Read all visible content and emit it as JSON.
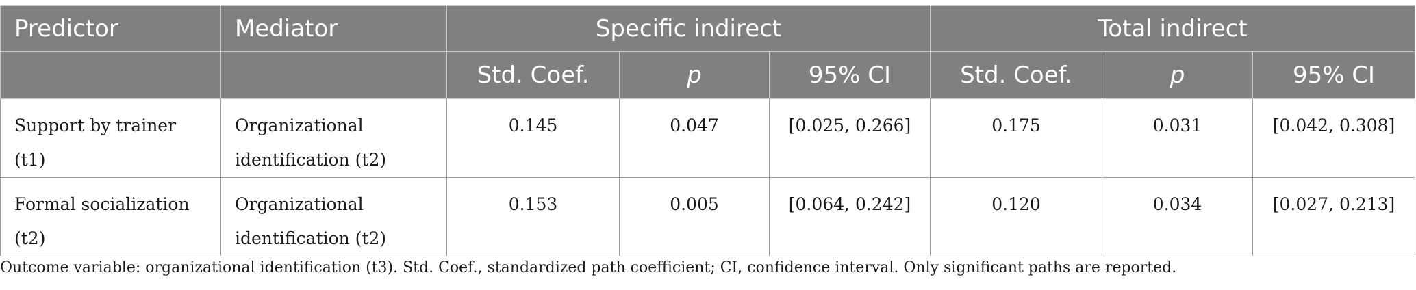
{
  "table": {
    "header_row1": {
      "predictor": "Predictor",
      "mediator": "Mediator",
      "specific_indirect": "Specific indirect",
      "total_indirect": "Total indirect"
    },
    "header_row2": {
      "std_coef_specific": "Std. Coef.",
      "p_specific": "p",
      "ci_specific": "95% CI",
      "std_coef_total": "Std. Coef.",
      "p_total": "p",
      "ci_total": "95% CI"
    },
    "rows": [
      {
        "predictor": "Support by trainer (t1)",
        "mediator": "Organizational identification (t2)",
        "spec_coef": "0.145",
        "spec_p": "0.047",
        "spec_ci": "[0.025, 0.266]",
        "tot_coef": "0.175",
        "tot_p": "0.031",
        "tot_ci": "[0.042, 0.308]"
      },
      {
        "predictor": "Formal socialization (t2)",
        "mediator": "Organizational identification (t2)",
        "spec_coef": "0.153",
        "spec_p": "0.005",
        "spec_ci": "[0.064, 0.242]",
        "tot_coef": "0.120",
        "tot_p": "0.034",
        "tot_ci": "[0.027, 0.213]"
      }
    ]
  },
  "note": "Outcome variable: organizational identification (t3). Std. Coef., standardized path coefficient; CI, confidence interval. Only significant paths are reported.",
  "colors": {
    "header_bg": "#7f807f",
    "header_text": "#ffffff",
    "border": "#9a9a9a"
  }
}
